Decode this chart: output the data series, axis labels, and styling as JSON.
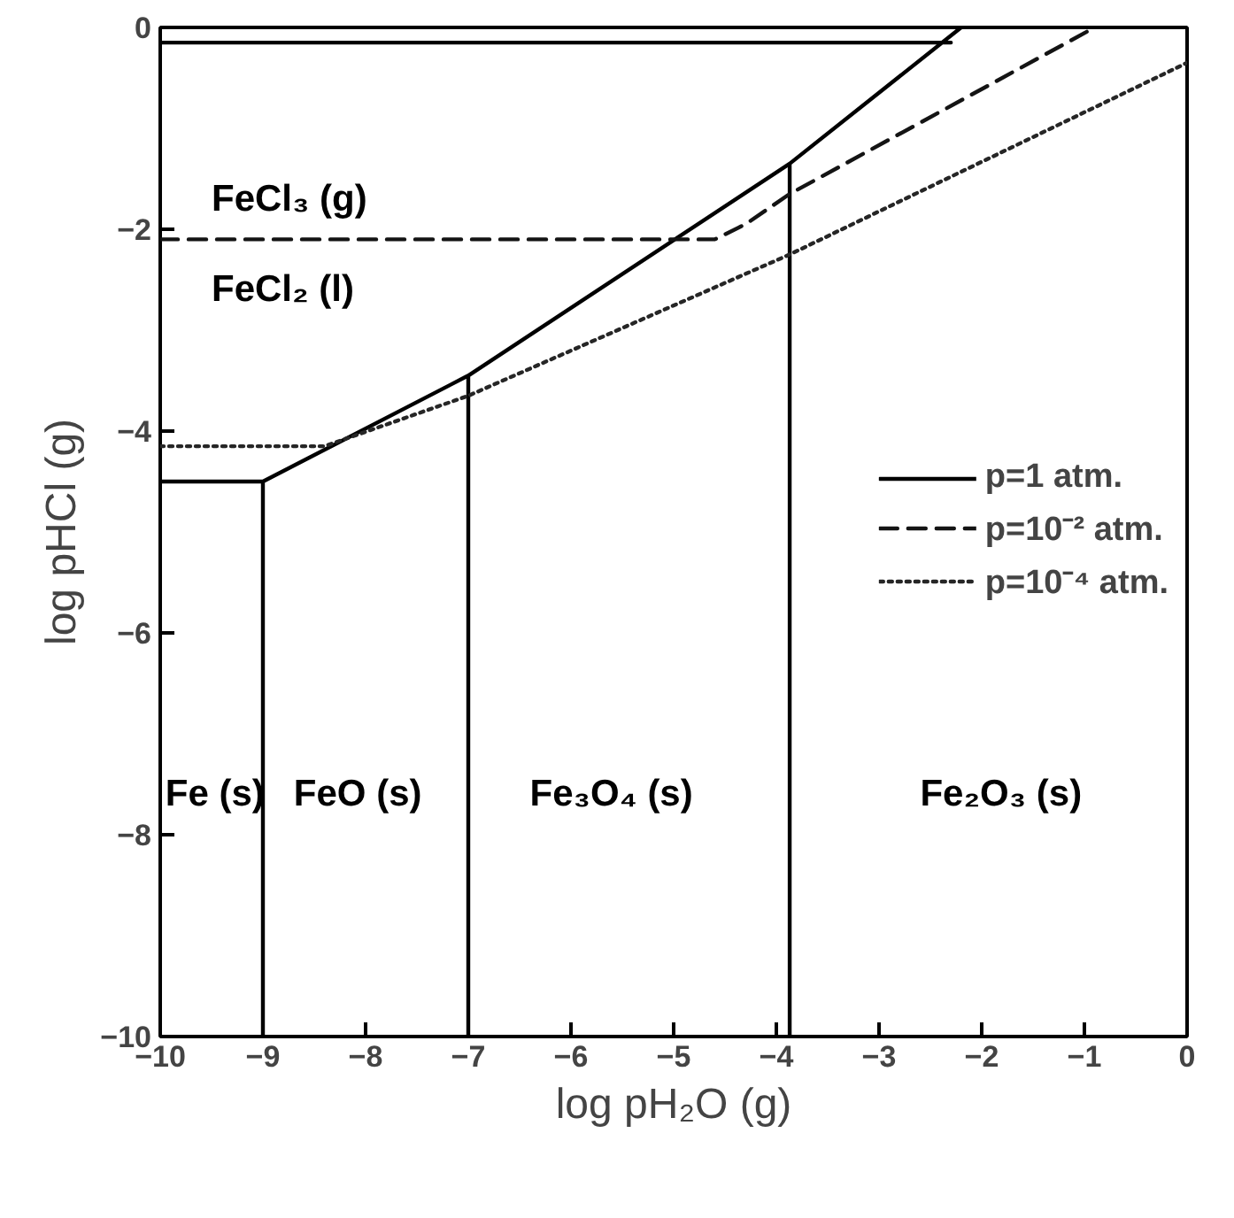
{
  "chart_data": {
    "type": "line",
    "xlabel": "log pH₂O (g)",
    "ylabel": "log pHCl (g)",
    "xlim": [
      -10,
      0
    ],
    "ylim": [
      -10,
      0
    ],
    "xticks": [
      -10,
      -9,
      -8,
      -7,
      -6,
      -5,
      -4,
      -3,
      -2,
      -1,
      0
    ],
    "yticks": [
      -10,
      -8,
      -6,
      -4,
      -2,
      0
    ],
    "grid": false,
    "legend": "right",
    "marker": "none",
    "series": [
      {
        "name": "p=1 atm.",
        "color": "#000000",
        "line_style": "solid",
        "x": [
          -10,
          -2.3,
          null,
          -10,
          -9,
          -7,
          -3.87,
          -2.2,
          null,
          -9,
          -9,
          null,
          -7,
          -7,
          null,
          -3.87,
          -3.87
        ],
        "values": [
          -0.15,
          -0.15,
          null,
          -4.5,
          -4.5,
          -3.45,
          -1.35,
          0,
          null,
          -4.5,
          -10,
          null,
          -3.45,
          -10,
          null,
          -1.35,
          -10
        ]
      },
      {
        "name": "p=10⁻² atm.",
        "color": "#141414",
        "line_style": "dashed",
        "x": [
          -10,
          -4.6,
          -4.3,
          -3.87,
          -0.9
        ],
        "values": [
          -2.1,
          -2.1,
          -1.95,
          -1.65,
          0
        ]
      },
      {
        "name": "p=10⁻⁴ atm.",
        "color": "#262626",
        "line_style": "dotted",
        "x": [
          -10,
          -8.4,
          -7,
          -3.87,
          0
        ],
        "values": [
          -4.15,
          -4.15,
          -3.65,
          -2.25,
          -0.35
        ]
      }
    ],
    "annotations": [
      "FeCl₃ (g)",
      "FeCl₂ (l)",
      "Fe (s)",
      "FeO (s)",
      "Fe₃O₄ (s)",
      "Fe₂O₃ (s)"
    ]
  }
}
